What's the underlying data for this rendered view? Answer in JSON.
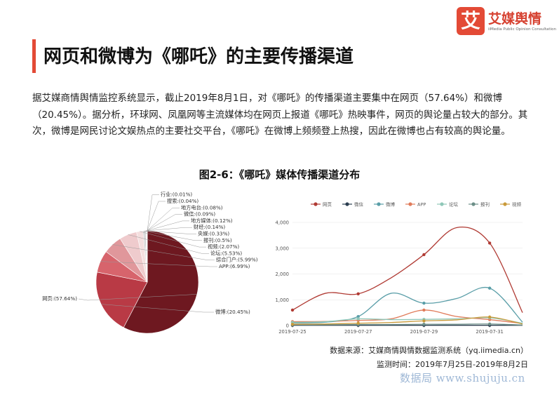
{
  "brand": {
    "logo_char": "艾",
    "name": "艾媒舆情",
    "tagline": "iiMedia Public Opinion Consultation"
  },
  "heading": "网页和微博为《哪吒》的主要传播渠道",
  "paragraph": "据艾媒商情舆情监控系统显示，截止2019年8月1日，对《哪吒》的传播渠道主要集中在网页（57.64%）和微博（20.45%）。据分析，环球网、凤凰网等主流媒体均在网页上报道《哪吒》热映事件，网页的舆论量占较大的部分。其次，微博是网民讨论文娱热点的主要社交平台，《哪吒》在微博上频频登上热搜，因此在微博也占有较高的舆论量。",
  "figure_title": "图2-6：《哪吒》媒体传播渠道分布",
  "source": "数据来源：艾媒商情舆情数据监测系统（yq.iimedia.cn）",
  "period": "监测时间：2019年7月25日-2019年8月2日",
  "watermark": "数据局 www.shujuju.cn",
  "chart_data": [
    {
      "type": "pie",
      "slices": [
        {
          "label": "网页:(57.64%)",
          "value": 57.64,
          "color": "#6e1820"
        },
        {
          "label": "微博:(20.45%)",
          "value": 20.45,
          "color": "#b93a45"
        },
        {
          "label": "APP:(6.99%)",
          "value": 6.99,
          "color": "#d7646c"
        },
        {
          "label": "综合门户:(5.99%)",
          "value": 5.99,
          "color": "#e0979b"
        },
        {
          "label": "论坛:(5.53%)",
          "value": 5.53,
          "color": "#efcbcd"
        },
        {
          "label": "视频:(2.07%)",
          "value": 2.07,
          "color": "#f4dede"
        },
        {
          "label": "报刊:(0.5%)",
          "value": 0.5,
          "color": "#c7c7c7"
        },
        {
          "label": "央媒:(0.33%)",
          "value": 0.33,
          "color": "#aaaaaa"
        },
        {
          "label": "财经:(0.14%)",
          "value": 0.14,
          "color": "#999999"
        },
        {
          "label": "地方媒体:(0.12%)",
          "value": 0.12,
          "color": "#888888"
        },
        {
          "label": "微信:(0.09%)",
          "value": 0.09,
          "color": "#777777"
        },
        {
          "label": "地方电台:(0.08%)",
          "value": 0.08,
          "color": "#666666"
        },
        {
          "label": "搜索:(0.04%)",
          "value": 0.04,
          "color": "#555555"
        },
        {
          "label": "行业:(0.01%)",
          "value": 0.01,
          "color": "#444444"
        }
      ]
    },
    {
      "type": "line",
      "legend": [
        "网页",
        "微信",
        "微博",
        "APP",
        "论坛",
        "报刊",
        "视频"
      ],
      "legend_position": "top",
      "x_ticks": [
        "2019-07-25",
        "2019-07-27",
        "2019-07-29",
        "2019-07-31"
      ],
      "y_ticks": [
        "0",
        "1,000",
        "2,000",
        "3,000",
        "4,000"
      ],
      "ylim": [
        0,
        4000
      ],
      "x": [
        "2019-07-25",
        "2019-07-26",
        "2019-07-27",
        "2019-07-28",
        "2019-07-29",
        "2019-07-30",
        "2019-07-31",
        "2019-08-01"
      ],
      "series": [
        {
          "name": "网页",
          "color": "#b03a33",
          "values": [
            600,
            1250,
            1230,
            1850,
            2750,
            3800,
            3200,
            500
          ]
        },
        {
          "name": "微信",
          "color": "#2c3e50",
          "values": [
            10,
            10,
            10,
            10,
            10,
            10,
            10,
            10
          ]
        },
        {
          "name": "微博",
          "color": "#5a9ea8",
          "values": [
            100,
            130,
            350,
            1250,
            870,
            1050,
            1450,
            130
          ]
        },
        {
          "name": "APP",
          "color": "#e07b5a",
          "values": [
            150,
            160,
            200,
            260,
            600,
            350,
            230,
            80
          ]
        },
        {
          "name": "论坛",
          "color": "#8fc7b8",
          "values": [
            120,
            150,
            260,
            230,
            240,
            260,
            300,
            90
          ]
        },
        {
          "name": "报刊",
          "color": "#6c8f88",
          "values": [
            30,
            30,
            40,
            40,
            50,
            50,
            60,
            20
          ]
        },
        {
          "name": "视频",
          "color": "#c99a3a",
          "values": [
            50,
            60,
            90,
            120,
            180,
            220,
            330,
            60
          ]
        }
      ]
    }
  ]
}
